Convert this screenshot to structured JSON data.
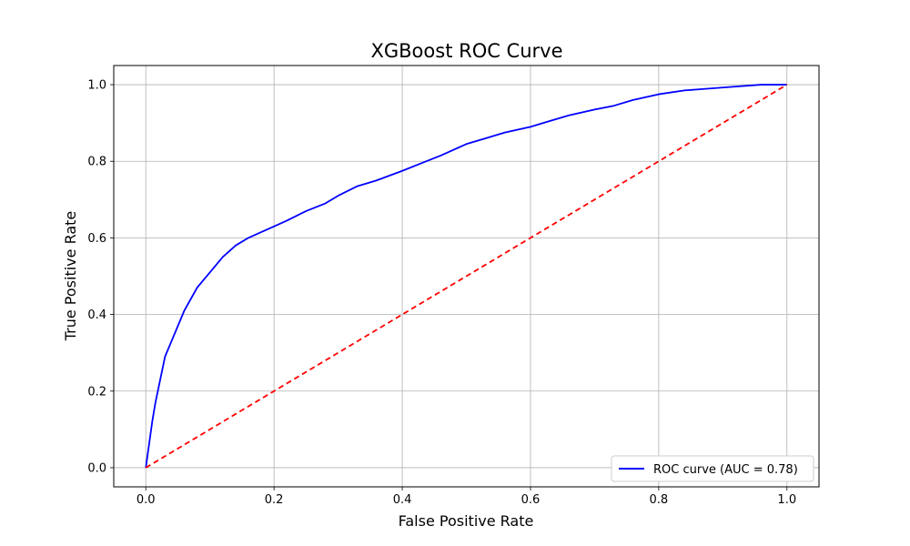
{
  "chart_data": {
    "type": "line",
    "title": "XGBoost ROC Curve",
    "xlabel": "False Positive Rate",
    "ylabel": "True Positive Rate",
    "xlim": [
      -0.05,
      1.05
    ],
    "ylim": [
      -0.05,
      1.05
    ],
    "xticks": [
      0.0,
      0.2,
      0.4,
      0.6,
      0.8,
      1.0
    ],
    "yticks": [
      0.0,
      0.2,
      0.4,
      0.6,
      0.8,
      1.0
    ],
    "xtick_labels": [
      "0.0",
      "0.2",
      "0.4",
      "0.6",
      "0.8",
      "1.0"
    ],
    "ytick_labels": [
      "0.0",
      "0.2",
      "0.4",
      "0.6",
      "0.8",
      "1.0"
    ],
    "grid": true,
    "legend_position": "lower-right",
    "series": [
      {
        "name": "ROC curve (AUC = 0.78)",
        "color": "#0000ff",
        "style": "solid",
        "x": [
          0.0,
          0.005,
          0.01,
          0.015,
          0.02,
          0.025,
          0.03,
          0.04,
          0.05,
          0.06,
          0.07,
          0.08,
          0.09,
          0.1,
          0.12,
          0.14,
          0.16,
          0.18,
          0.2,
          0.22,
          0.25,
          0.28,
          0.3,
          0.33,
          0.36,
          0.4,
          0.43,
          0.46,
          0.5,
          0.53,
          0.56,
          0.6,
          0.63,
          0.66,
          0.7,
          0.73,
          0.76,
          0.8,
          0.84,
          0.88,
          0.92,
          0.96,
          1.0
        ],
        "y": [
          0.0,
          0.06,
          0.12,
          0.17,
          0.21,
          0.25,
          0.29,
          0.33,
          0.37,
          0.41,
          0.44,
          0.47,
          0.49,
          0.51,
          0.55,
          0.58,
          0.6,
          0.615,
          0.63,
          0.645,
          0.67,
          0.69,
          0.71,
          0.735,
          0.75,
          0.775,
          0.795,
          0.815,
          0.845,
          0.86,
          0.875,
          0.89,
          0.905,
          0.92,
          0.935,
          0.945,
          0.96,
          0.975,
          0.985,
          0.99,
          0.995,
          1.0,
          1.0
        ]
      },
      {
        "name": "",
        "color": "#ff0000",
        "style": "dashed",
        "x": [
          0.0,
          1.0
        ],
        "y": [
          0.0,
          1.0
        ]
      }
    ]
  }
}
